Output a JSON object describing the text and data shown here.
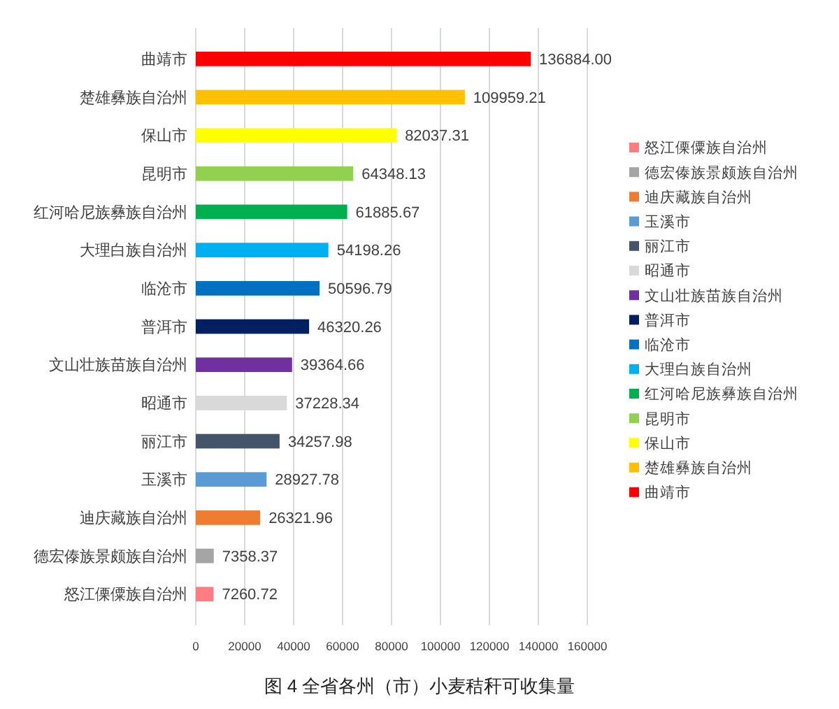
{
  "chart_data": {
    "type": "bar",
    "orientation": "horizontal",
    "title": "图 4 全省各州（市）小麦秸秆可收集量",
    "categories": [
      "曲靖市",
      "楚雄彝族自治州",
      "保山市",
      "昆明市",
      "红河哈尼族彝族自治州",
      "大理白族自治州",
      "临沧市",
      "普洱市",
      "文山壮族苗族自治州",
      "昭通市",
      "丽江市",
      "玉溪市",
      "迪庆藏族自治州",
      "德宏傣族景颇族自治州",
      "怒江傈僳族自治州"
    ],
    "series": [
      {
        "name": "曲靖市",
        "color": "#ff0000",
        "values": [
          136884.0,
          null,
          null,
          null,
          null,
          null,
          null,
          null,
          null,
          null,
          null,
          null,
          null,
          null,
          null
        ],
        "value_labels": [
          "136884.00",
          null,
          null,
          null,
          null,
          null,
          null,
          null,
          null,
          null,
          null,
          null,
          null,
          null,
          null
        ]
      },
      {
        "name": "楚雄彝族自治州",
        "color": "#ffc000",
        "values": [
          null,
          109959.21,
          null,
          null,
          null,
          null,
          null,
          null,
          null,
          null,
          null,
          null,
          null,
          null,
          null
        ],
        "value_labels": [
          null,
          "109959.21",
          null,
          null,
          null,
          null,
          null,
          null,
          null,
          null,
          null,
          null,
          null,
          null,
          null
        ]
      },
      {
        "name": "保山市",
        "color": "#ffff00",
        "values": [
          null,
          null,
          82037.31,
          null,
          null,
          null,
          null,
          null,
          null,
          null,
          null,
          null,
          null,
          null,
          null
        ],
        "value_labels": [
          null,
          null,
          "82037.31",
          null,
          null,
          null,
          null,
          null,
          null,
          null,
          null,
          null,
          null,
          null,
          null
        ]
      },
      {
        "name": "昆明市",
        "color": "#92d050",
        "values": [
          null,
          null,
          null,
          64348.13,
          null,
          null,
          null,
          null,
          null,
          null,
          null,
          null,
          null,
          null,
          null
        ],
        "value_labels": [
          null,
          null,
          null,
          "64348.13",
          null,
          null,
          null,
          null,
          null,
          null,
          null,
          null,
          null,
          null,
          null
        ]
      },
      {
        "name": "红河哈尼族彝族自治州",
        "color": "#00b050",
        "values": [
          null,
          null,
          null,
          null,
          61885.67,
          null,
          null,
          null,
          null,
          null,
          null,
          null,
          null,
          null,
          null
        ],
        "value_labels": [
          null,
          null,
          null,
          null,
          "61885.67",
          null,
          null,
          null,
          null,
          null,
          null,
          null,
          null,
          null,
          null
        ]
      },
      {
        "name": "大理白族自治州",
        "color": "#00b0f0",
        "values": [
          null,
          null,
          null,
          null,
          null,
          54198.26,
          null,
          null,
          null,
          null,
          null,
          null,
          null,
          null,
          null
        ],
        "value_labels": [
          null,
          null,
          null,
          null,
          null,
          "54198.26",
          null,
          null,
          null,
          null,
          null,
          null,
          null,
          null,
          null
        ]
      },
      {
        "name": "临沧市",
        "color": "#0070c0",
        "values": [
          null,
          null,
          null,
          null,
          null,
          null,
          50596.79,
          null,
          null,
          null,
          null,
          null,
          null,
          null,
          null
        ],
        "value_labels": [
          null,
          null,
          null,
          null,
          null,
          null,
          "50596.79",
          null,
          null,
          null,
          null,
          null,
          null,
          null,
          null
        ]
      },
      {
        "name": "普洱市",
        "color": "#002060",
        "values": [
          null,
          null,
          null,
          null,
          null,
          null,
          null,
          46320.26,
          null,
          null,
          null,
          null,
          null,
          null,
          null
        ],
        "value_labels": [
          null,
          null,
          null,
          null,
          null,
          null,
          null,
          "46320.26",
          null,
          null,
          null,
          null,
          null,
          null,
          null
        ]
      },
      {
        "name": "文山壮族苗族自治州",
        "color": "#7030a0",
        "values": [
          null,
          null,
          null,
          null,
          null,
          null,
          null,
          null,
          39364.66,
          null,
          null,
          null,
          null,
          null,
          null
        ],
        "value_labels": [
          null,
          null,
          null,
          null,
          null,
          null,
          null,
          null,
          "39364.66",
          null,
          null,
          null,
          null,
          null,
          null
        ]
      },
      {
        "name": "昭通市",
        "color": "#d9d9d9",
        "values": [
          null,
          null,
          null,
          null,
          null,
          null,
          null,
          null,
          null,
          37228.34,
          null,
          null,
          null,
          null,
          null
        ],
        "value_labels": [
          null,
          null,
          null,
          null,
          null,
          null,
          null,
          null,
          null,
          "37228.34",
          null,
          null,
          null,
          null,
          null
        ]
      },
      {
        "name": "丽江市",
        "color": "#44546a",
        "values": [
          null,
          null,
          null,
          null,
          null,
          null,
          null,
          null,
          null,
          null,
          34257.98,
          null,
          null,
          null,
          null
        ],
        "value_labels": [
          null,
          null,
          null,
          null,
          null,
          null,
          null,
          null,
          null,
          null,
          "34257.98",
          null,
          null,
          null,
          null
        ]
      },
      {
        "name": "玉溪市",
        "color": "#5b9bd5",
        "values": [
          null,
          null,
          null,
          null,
          null,
          null,
          null,
          null,
          null,
          null,
          null,
          28927.78,
          null,
          null,
          null
        ],
        "value_labels": [
          null,
          null,
          null,
          null,
          null,
          null,
          null,
          null,
          null,
          null,
          null,
          "28927.78",
          null,
          null,
          null
        ]
      },
      {
        "name": "迪庆藏族自治州",
        "color": "#ed7d31",
        "values": [
          null,
          null,
          null,
          null,
          null,
          null,
          null,
          null,
          null,
          null,
          null,
          null,
          26321.96,
          null,
          null
        ],
        "value_labels": [
          null,
          null,
          null,
          null,
          null,
          null,
          null,
          null,
          null,
          null,
          null,
          null,
          "26321.96",
          null,
          null
        ]
      },
      {
        "name": "德宏傣族景颇族自治州",
        "color": "#a5a5a5",
        "values": [
          null,
          null,
          null,
          null,
          null,
          null,
          null,
          null,
          null,
          null,
          null,
          null,
          null,
          7358.37,
          null
        ],
        "value_labels": [
          null,
          null,
          null,
          null,
          null,
          null,
          null,
          null,
          null,
          null,
          null,
          null,
          null,
          "7358.37",
          null
        ]
      },
      {
        "name": "怒江傈僳族自治州",
        "color": "#ff7c80",
        "values": [
          null,
          null,
          null,
          null,
          null,
          null,
          null,
          null,
          null,
          null,
          null,
          null,
          null,
          null,
          7260.72
        ],
        "value_labels": [
          null,
          null,
          null,
          null,
          null,
          null,
          null,
          null,
          null,
          null,
          null,
          null,
          null,
          null,
          "7260.72"
        ]
      }
    ],
    "xlim": [
      0,
      160000
    ],
    "xticks": [
      0,
      20000,
      40000,
      60000,
      80000,
      100000,
      120000,
      140000,
      160000
    ],
    "grid": "x",
    "legend": "right"
  }
}
